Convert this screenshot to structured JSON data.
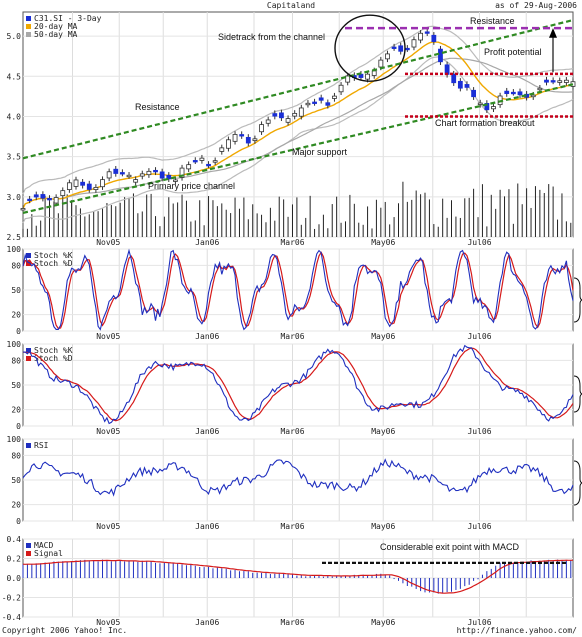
{
  "header": {
    "title": "Capitaland",
    "date_label": "as of 29-Aug-2006"
  },
  "footer": {
    "copyright": "Copyright 2006 Yahoo! Inc.",
    "url": "http://finance.yahoo.com/"
  },
  "colors": {
    "price_candle": "#1a2fd6",
    "ma20": "#f0a800",
    "ma50": "#a8a8a8",
    "channel": "#2f8a22",
    "resistance_purple": "#9b2fb0",
    "support_red": "#c4001a",
    "stoch_k": "#1f2fbf",
    "stoch_d": "#d61a1a",
    "macd": "#1f2fbf",
    "signal": "#d61a1a"
  },
  "chart_data": [
    {
      "panel": "price",
      "type": "line",
      "legend": [
        "C31.SI - 3-Day",
        "20-day MA",
        "50-day MA"
      ],
      "ylim": [
        2.5,
        5.3
      ],
      "yticks": [
        "5.0",
        "4.5",
        "4.0",
        "3.5",
        "3.0",
        "2.5"
      ],
      "x_months": [
        "Nov05",
        "Jan06",
        "Mar06",
        "May06",
        "Jul06"
      ],
      "x": [
        "2005-09",
        "2005-10",
        "2005-11",
        "2005-12",
        "2006-01",
        "2006-02",
        "2006-03",
        "2006-04",
        "2006-05",
        "2006-06",
        "2006-07",
        "2006-08"
      ],
      "series": [
        {
          "name": "C31.SI - 3-Day",
          "values": [
            2.9,
            3.1,
            3.3,
            3.25,
            3.6,
            3.95,
            4.2,
            4.6,
            5.05,
            4.15,
            4.3,
            4.5
          ]
        }
      ],
      "annotations": [
        "Sidetrack from the channel",
        "Resistance",
        "Profit potential",
        "Resistance",
        "Chart formation breakout",
        "Major support",
        "Primary price channel"
      ]
    },
    {
      "panel": "stoch1",
      "type": "line",
      "legend": [
        "Stoch %K",
        "Stoch %D"
      ],
      "ylim": [
        0,
        100
      ],
      "yticks": [
        "100",
        "80",
        "50",
        "20",
        "0"
      ],
      "x_months": [
        "Nov05",
        "Jan06",
        "Mar06",
        "May06",
        "Jul06"
      ]
    },
    {
      "panel": "stoch2",
      "type": "line",
      "legend": [
        "Stoch %K",
        "Stoch %D"
      ],
      "ylim": [
        0,
        100
      ],
      "yticks": [
        "100",
        "80",
        "50",
        "20",
        "0"
      ],
      "x_months": [
        "Nov05",
        "Jan06",
        "Mar06",
        "May06",
        "Jul06"
      ]
    },
    {
      "panel": "rsi",
      "type": "line",
      "legend": [
        "RSI"
      ],
      "ylim": [
        0,
        100
      ],
      "yticks": [
        "100",
        "80",
        "50",
        "20",
        "0"
      ],
      "x_months": [
        "Nov05",
        "Jan06",
        "Mar06",
        "May06",
        "Jul06"
      ]
    },
    {
      "panel": "macd",
      "type": "line",
      "legend": [
        "MACD",
        "Signal"
      ],
      "ylim": [
        -0.4,
        0.4
      ],
      "yticks": [
        "0.4",
        "0.2",
        "0.0",
        "-0.2",
        "-0.4"
      ],
      "x_months": [
        "Nov05",
        "Jan06",
        "Mar06",
        "May06",
        "Jul06"
      ],
      "annotations": [
        "Considerable exit point with MACD"
      ]
    }
  ]
}
